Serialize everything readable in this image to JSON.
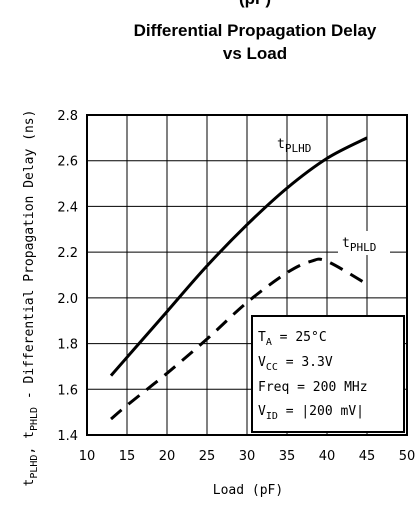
{
  "chart_data": {
    "type": "line",
    "title_top_partial": "(pF)",
    "title_line1": "Differential Propagation Delay",
    "title_line2": "vs Load",
    "xlabel": "Load (pF)",
    "ylabel": "tPLHD, tPHLD - Differential Propagation Delay (ns)",
    "xlim": [
      10,
      50
    ],
    "ylim": [
      1.4,
      2.8
    ],
    "xticks": [
      10,
      15,
      20,
      25,
      30,
      35,
      40,
      45,
      50
    ],
    "yticks": [
      1.4,
      1.6,
      1.8,
      2.0,
      2.2,
      2.4,
      2.6,
      2.8
    ],
    "ytick_labels": [
      "1.4",
      "1.6",
      "1.8",
      "2.0",
      "2.2",
      "2.4",
      "2.6",
      "2.8"
    ],
    "grid": true,
    "series": [
      {
        "name": "tPLHD",
        "style": "solid",
        "x": [
          13,
          15,
          20,
          25,
          30,
          35,
          40,
          45
        ],
        "y": [
          1.66,
          1.74,
          1.94,
          2.14,
          2.32,
          2.48,
          2.61,
          2.7
        ]
      },
      {
        "name": "tPHLD",
        "style": "dashed",
        "x": [
          13,
          15,
          20,
          25,
          30,
          35,
          38,
          40,
          45
        ],
        "y": [
          1.47,
          1.53,
          1.67,
          1.82,
          1.98,
          2.11,
          2.16,
          2.16,
          2.06
        ]
      }
    ],
    "conditions": {
      "ta": "25°C",
      "vcc": "3.3V",
      "freq": "200 MHz",
      "vid": "|200 mV|"
    },
    "colors": {
      "line": "#000000",
      "grid": "#000000",
      "background": "#ffffff"
    }
  }
}
